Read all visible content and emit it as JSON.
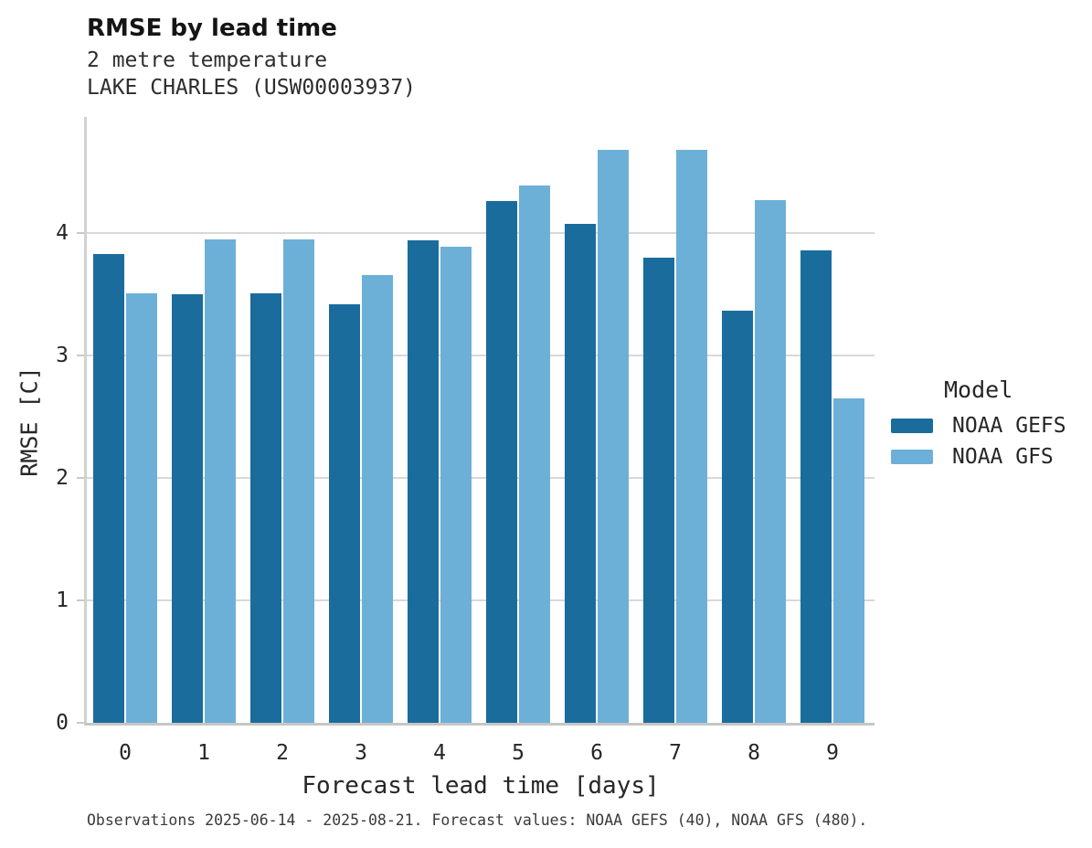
{
  "header": {
    "title": "RMSE by lead time",
    "subtitle_line1": "2 metre temperature",
    "subtitle_line2": "LAKE CHARLES (USW00003937)"
  },
  "legend": {
    "title": "Model",
    "entries": [
      {
        "label": "NOAA GEFS",
        "color": "#1a6c9d"
      },
      {
        "label": "NOAA GFS",
        "color": "#6cb0d8"
      }
    ]
  },
  "footer": {
    "note": "Observations 2025-06-14 - 2025-08-21. Forecast values: NOAA GEFS (40), NOAA GFS (480)."
  },
  "chart_data": {
    "type": "bar",
    "title": "RMSE by lead time",
    "subtitle": [
      "2 metre temperature",
      "LAKE CHARLES (USW00003937)"
    ],
    "categories": [
      "0",
      "1",
      "2",
      "3",
      "4",
      "5",
      "6",
      "7",
      "8",
      "9"
    ],
    "series": [
      {
        "name": "NOAA GEFS",
        "color": "#1a6c9d",
        "values": [
          3.83,
          3.5,
          3.51,
          3.42,
          3.94,
          4.26,
          4.08,
          3.8,
          3.37,
          3.86
        ]
      },
      {
        "name": "NOAA GFS",
        "color": "#6cb0d8",
        "values": [
          3.51,
          3.95,
          3.95,
          3.66,
          3.89,
          4.39,
          4.68,
          4.68,
          4.27,
          2.65
        ]
      }
    ],
    "xlabel": "Forecast lead time [days]",
    "ylabel": "RMSE [C]",
    "ylim": [
      0,
      4.95
    ],
    "yticks": [
      0,
      1,
      2,
      3,
      4
    ],
    "grid": true,
    "grid_axis": "y",
    "legend_position": "right",
    "legend_title": "Model",
    "annotation": "Observations 2025-06-14 - 2025-08-21. Forecast values: NOAA GEFS (40), NOAA GFS (480)."
  }
}
